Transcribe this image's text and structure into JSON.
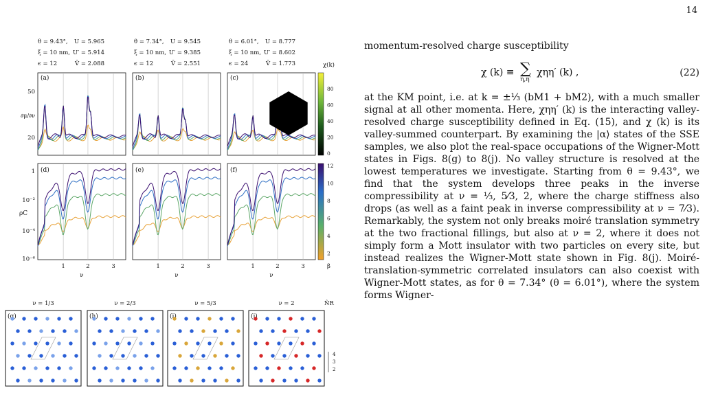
{
  "page_number": "14",
  "figure": {
    "params": [
      {
        "theta": "θ = 9.43°,",
        "U": "U = 5.965",
        "xi": "ξ = 10 nm,",
        "Up": "U′ = 5.914",
        "eps": "ϵ = 12",
        "Vbar": "V̄ = 2.088"
      },
      {
        "theta": "θ = 7.34°,",
        "U": "U = 9.545",
        "xi": "ξ = 10 nm,",
        "Up": "U′ = 9.385",
        "eps": "ϵ = 12",
        "Vbar": "V̄ = 2.551"
      },
      {
        "theta": "θ = 6.01°,",
        "U": "U = 8.777",
        "xi": "ξ = 10 nm,",
        "Up": "U′ = 8.602",
        "eps": "ϵ = 24",
        "Vbar": "V̄ = 1.773"
      }
    ],
    "panel_labels_top": [
      "(a)",
      "(b)",
      "(c)"
    ],
    "panel_labels_mid": [
      "(d)",
      "(e)",
      "(f)"
    ],
    "panel_labels_bottom": [
      "(g)",
      "(h)",
      "(i)",
      "(j)"
    ],
    "top_ylabel": "∂μ/∂ν",
    "top_yticks": [
      "50",
      "20"
    ],
    "mid_ylabel": "ρC",
    "mid_yticks": [
      "1",
      "10⁻²",
      "10⁻⁴",
      "10⁻⁶"
    ],
    "xlabel": "ν",
    "xticks": [
      "1",
      "2",
      "3"
    ],
    "colorbar_chi_label": "χ(k)",
    "colorbar_chi_ticks": [
      "80",
      "60",
      "40",
      "20",
      "0"
    ],
    "colorbar_beta_label": "β",
    "colorbar_beta_ticks": [
      "12",
      "10",
      "8",
      "6",
      "4",
      "2"
    ],
    "nu_labels": [
      "ν = 1/3",
      "ν = 2/3",
      "ν = 5/3",
      "ν = 2"
    ],
    "nhat_label": "N̂R",
    "occ_ticks": [
      "4",
      "3",
      "2"
    ],
    "colors": {
      "purple": "#3b0f70",
      "blue": "#2e6fc4",
      "green": "#5da768",
      "orange": "#e8a33a",
      "red": "#e0452f",
      "dot_blue": "#2a5fd6",
      "dot_light": "#7aa2ea",
      "dot_gold": "#d9a63a",
      "dot_red": "#d62728"
    }
  },
  "text": {
    "intro": "momentum-resolved charge susceptibility",
    "eq_lhs": "χ (k) ≡",
    "eq_sum": "∑",
    "eq_sum_sub": "η,η′",
    "eq_rhs": "χηη′ (k) ,",
    "eq_num": "(22)",
    "para1": "at the KM point, i.e. at k = ±⅓ (bM1 + bM2), with a much smaller signal at all other momenta. Here, χηη′ (k) is the interacting valley-resolved charge susceptibility defined in Eq. (15), and χ (k) is its valley-summed counterpart. By examining the |α⟩ states of the SSE samples, we also plot the real-space occupations of the Wigner-Mott states in Figs. 8(g) to 8(j). No valley structure is resolved at the lowest temperatures we investigate. Starting from θ = 9.43°, we find that the system develops three peaks in the inverse compressibility at ν = ⅓, 5⁄3, 2, where the charge stiffness also drops (as well as a faint peak in inverse compressibility at ν = 7⁄3). Remarkably, the system not only breaks moiré translation symmetry at the two fractional fillings, but also at ν = 2, where it does not simply form a Mott insulator with two particles on every site, but instead realizes the Wigner-Mott state shown in Fig. 8(j). Moiré-translation-symmetric correlated insulators can also coexist with Wigner-Mott states, as for θ = 7.34° (θ = 6.01°), where the system forms Wigner-"
  }
}
